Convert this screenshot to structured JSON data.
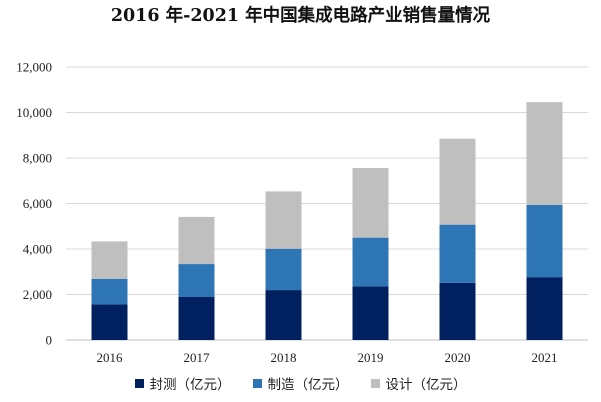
{
  "chart_data": {
    "type": "bar",
    "stacked": true,
    "title": "2016 年-2021 年中国集成电路产业销售量情况",
    "categories": [
      "2016",
      "2017",
      "2018",
      "2019",
      "2020",
      "2021"
    ],
    "series": [
      {
        "name": "封测（亿元）",
        "color": "#002060",
        "values": [
          1564,
          1890,
          2194,
          2350,
          2510,
          2763
        ]
      },
      {
        "name": "制造（亿元）",
        "color": "#2E75B6",
        "values": [
          1127,
          1448,
          1818,
          2149,
          2560,
          3176
        ]
      },
      {
        "name": "设计（亿元）",
        "color": "#BFBFBF",
        "values": [
          1644,
          2073,
          2519,
          3064,
          3778,
          4519
        ]
      }
    ],
    "ylim": [
      0,
      12000
    ],
    "yticks": [
      "0",
      "2,000",
      "4,000",
      "6,000",
      "8,000",
      "10,000",
      "12,000"
    ],
    "xlabel": "",
    "ylabel": "",
    "grid": true,
    "legend_position": "bottom"
  }
}
